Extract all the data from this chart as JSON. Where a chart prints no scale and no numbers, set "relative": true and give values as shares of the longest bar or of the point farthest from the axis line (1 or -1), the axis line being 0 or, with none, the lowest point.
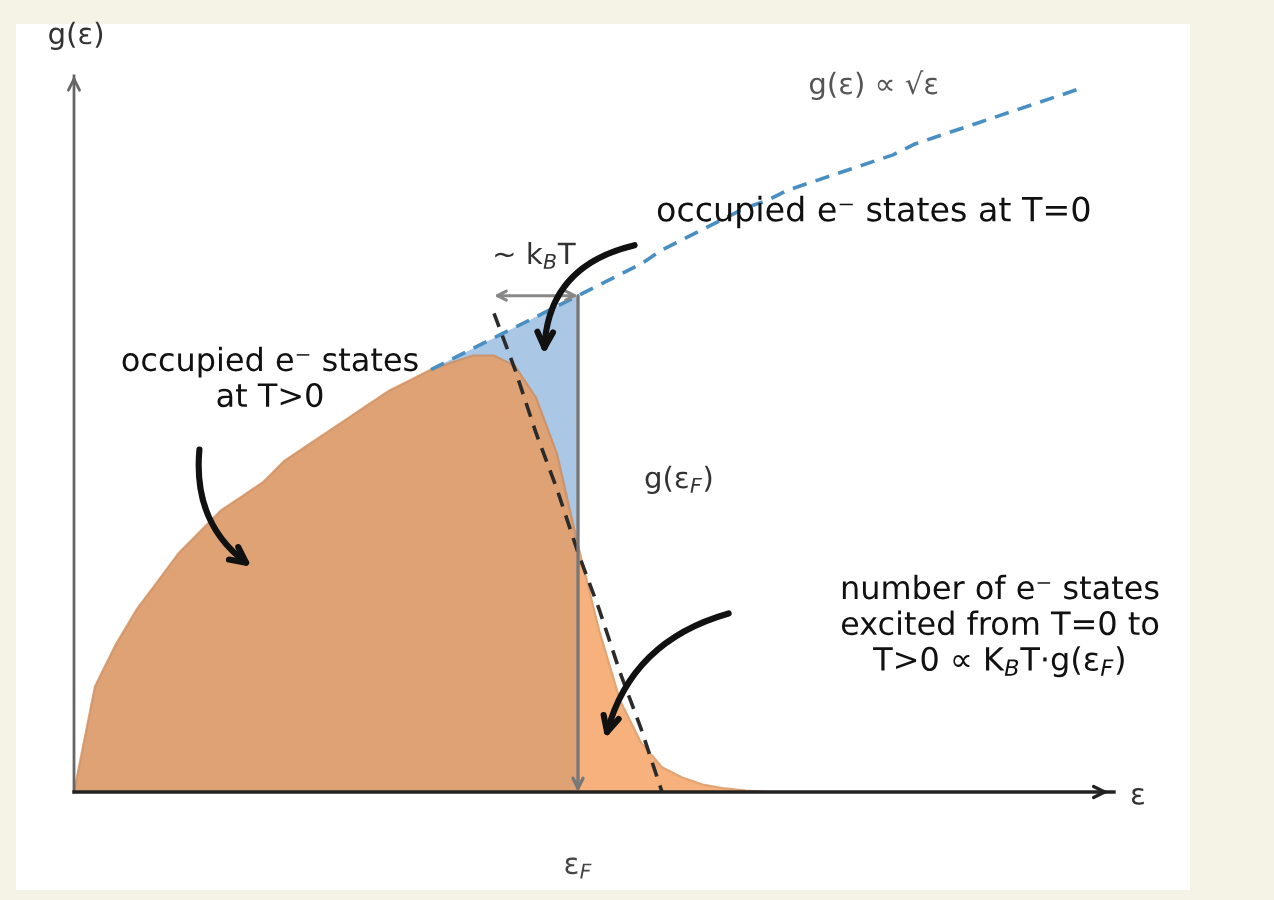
{
  "chart_data": {
    "type": "area",
    "relative": true,
    "xlabel": "ε",
    "ylabel": "g(ε)",
    "categories": [
      null,
      null,
      null,
      null,
      null,
      null,
      null,
      null,
      null,
      null,
      null,
      null,
      null,
      null,
      null,
      null,
      null,
      null,
      null,
      null,
      null,
      null,
      null,
      null,
      null,
      null,
      null,
      null,
      null,
      null,
      null,
      null,
      null,
      null,
      null,
      null,
      null,
      null,
      null,
      null,
      null,
      null,
      null,
      null,
      null,
      null,
      null,
      null,
      null
    ],
    "series": [
      {
        "color": "#aac7e6",
        "values": [
          0,
          0.15,
          0.21,
          0.26,
          0.3,
          0.34,
          0.37,
          0.4,
          0.42,
          0.44,
          0.47,
          0.49,
          0.51,
          0.53,
          0.55,
          0.57,
          0.585,
          0.6,
          0.615,
          0.63,
          0.645,
          0.66,
          0.675,
          0.69,
          0.705,
          null,
          null,
          null,
          null,
          null,
          null,
          null,
          null,
          null,
          null,
          null,
          null,
          null,
          null,
          null,
          null,
          null,
          null,
          null,
          null,
          null,
          null,
          null,
          null
        ]
      },
      {
        "color": "#f4944a",
        "values": [
          0,
          0.15,
          0.21,
          0.26,
          0.3,
          0.34,
          0.37,
          0.4,
          0.42,
          0.44,
          0.47,
          0.49,
          0.51,
          0.53,
          0.55,
          0.57,
          0.585,
          0.6,
          0.61,
          0.62,
          0.62,
          0.605,
          0.56,
          0.48,
          0.35,
          0.23,
          0.13,
          0.07,
          0.035,
          0.02,
          0.01,
          0.005,
          0.002,
          0,
          null,
          null,
          null,
          null,
          null,
          null,
          null,
          null,
          null,
          null,
          null,
          null,
          null,
          null,
          null
        ]
      },
      {
        "type": "line",
        "line_style": "dashed",
        "name": "g(ε) ∝ √ε",
        "color": "#4a8fc2",
        "values": [
          null,
          null,
          null,
          null,
          null,
          null,
          null,
          null,
          null,
          null,
          null,
          null,
          null,
          null,
          null,
          null,
          null,
          0.6,
          0.615,
          0.63,
          0.645,
          0.66,
          0.675,
          0.69,
          0.705,
          0.72,
          0.735,
          0.75,
          0.77,
          0.785,
          0.8,
          0.815,
          0.83,
          0.84,
          0.855,
          0.865,
          0.875,
          0.885,
          0.895,
          0.905,
          0.92,
          0.93,
          0.94,
          0.95,
          0.96,
          0.97,
          0.98,
          0.99,
          1.0
        ]
      },
      {
        "type": "line",
        "line_style": "dashed",
        "color": "#2b2b2b",
        "values": [
          null,
          null,
          null,
          null,
          null,
          null,
          null,
          null,
          null,
          null,
          null,
          null,
          null,
          null,
          null,
          null,
          null,
          null,
          null,
          null,
          0.68,
          0.6,
          0.51,
          0.43,
          0.34,
          0.26,
          0.17,
          0.09,
          0,
          null,
          null,
          null,
          null,
          null,
          null,
          null,
          null,
          null,
          null,
          null,
          null,
          null,
          null,
          null,
          null,
          null,
          null,
          null,
          null
        ]
      }
    ],
    "annotations": [
      "~ k$_{B}$T",
      "occupied e⁻ states at T=0",
      "occupied e⁻ states\nat T>0",
      "g(ε$_{F}$)",
      "number of e⁻ states\nexcited from T=0 to\nT>0 ∝ K$_{B}$T·g(ε$_{F}$)",
      "ε$_{F}$"
    ]
  }
}
